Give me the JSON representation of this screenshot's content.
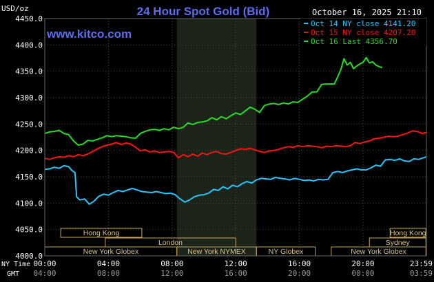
{
  "chart_data": {
    "type": "line",
    "title": "24 Hour Spot Gold (Bid)",
    "y_unit": "USD/oz",
    "brand": "www.kitco.com",
    "timestamp": "October 16, 2025 21:10",
    "ylim": [
      4000,
      4450
    ],
    "yticks": [
      4000,
      4050,
      4100,
      4150,
      4200,
      4250,
      4300,
      4350,
      4400,
      4450
    ],
    "ytick_labels": [
      "4000.0",
      "4050.0",
      "4100.0",
      "4150.0",
      "4200.0",
      "4250.0",
      "4300.0",
      "4350.0",
      "4400.0",
      "4450.0"
    ],
    "x_hours": [
      0,
      4,
      8,
      12,
      16,
      20,
      23.983
    ],
    "ny_time_label": "NY Time",
    "gmt_label": "GMT",
    "ny_time_ticks": [
      "00:00",
      "04:00",
      "08:00",
      "12:00",
      "16:00",
      "20:00",
      "23:59"
    ],
    "gmt_ticks": [
      "04:00",
      "08:00",
      "12:00",
      "16:00",
      "20:00",
      "00:00",
      "03:59"
    ],
    "shaded_region_hours": [
      8.3,
      13.3
    ],
    "sessions": [
      {
        "name": "Hong Kong",
        "row": 0,
        "start": 1.0,
        "end": 6.1
      },
      {
        "name": "Hong Kong",
        "row": 0,
        "start": 21.7,
        "end": 23.95
      },
      {
        "name": "London",
        "row": 1,
        "start": 3.8,
        "end": 12.0
      },
      {
        "name": "Sydney",
        "row": 1,
        "start": 20.4,
        "end": 23.95
      },
      {
        "name": "New York Globex",
        "row": 2,
        "start": 0.0,
        "end": 8.3
      },
      {
        "name": "New York NYMEX",
        "row": 2,
        "start": 8.3,
        "end": 13.3
      },
      {
        "name": "NY Globex",
        "row": 2,
        "start": 13.3,
        "end": 17.0
      },
      {
        "name": "New York Globex",
        "row": 2,
        "start": 18.0,
        "end": 23.95
      }
    ],
    "series": [
      {
        "name": "Oct 14 NY close 4141.20",
        "color": "#22c8ff",
        "x": [
          0.0,
          0.3,
          0.6,
          0.9,
          1.2,
          1.5,
          1.7,
          1.9,
          2.0,
          2.2,
          2.5,
          2.8,
          3.1,
          3.4,
          3.7,
          4.0,
          4.3,
          4.6,
          4.9,
          5.2,
          5.5,
          5.8,
          6.1,
          6.4,
          6.7,
          7.0,
          7.3,
          7.6,
          7.9,
          8.2,
          8.5,
          8.8,
          9.1,
          9.4,
          9.7,
          10.0,
          10.3,
          10.6,
          10.9,
          11.2,
          11.5,
          11.8,
          12.1,
          12.4,
          12.7,
          13.0,
          13.3,
          13.6,
          13.9,
          14.2,
          14.5,
          14.8,
          15.1,
          15.4,
          15.7,
          16.0,
          16.3,
          16.6,
          16.9,
          17.2,
          17.5,
          17.8,
          18.1,
          18.4,
          18.7,
          19.0,
          19.3,
          19.6,
          19.9,
          20.2,
          20.5,
          20.8,
          21.1,
          21.4,
          21.7,
          22.0,
          22.3,
          22.6,
          22.9,
          23.2,
          23.5,
          23.8,
          23.983
        ],
        "values": [
          4164,
          4165,
          4168,
          4166,
          4171,
          4169,
          4162,
          4158,
          4112,
          4106,
          4108,
          4098,
          4104,
          4113,
          4117,
          4115,
          4120,
          4124,
          4122,
          4125,
          4128,
          4125,
          4122,
          4121,
          4120,
          4122,
          4120,
          4118,
          4119,
          4116,
          4108,
          4102,
          4106,
          4112,
          4115,
          4116,
          4119,
          4126,
          4124,
          4131,
          4127,
          4134,
          4131,
          4137,
          4141,
          4138,
          4144,
          4147,
          4146,
          4145,
          4149,
          4147,
          4146,
          4144,
          4147,
          4145,
          4143,
          4144,
          4142,
          4145,
          4144,
          4145,
          4158,
          4160,
          4158,
          4161,
          4163,
          4165,
          4163,
          4163,
          4167,
          4172,
          4170,
          4182,
          4183,
          4181,
          4184,
          4180,
          4179,
          4184,
          4183,
          4186,
          4188
        ]
      },
      {
        "name": "Oct 15 NY close 4207.20",
        "color": "#ff1010",
        "x": [
          0.0,
          0.3,
          0.6,
          0.9,
          1.2,
          1.5,
          1.8,
          2.1,
          2.4,
          2.7,
          3.0,
          3.3,
          3.6,
          3.9,
          4.2,
          4.5,
          4.8,
          5.1,
          5.4,
          5.7,
          6.0,
          6.3,
          6.6,
          6.9,
          7.2,
          7.5,
          7.8,
          8.1,
          8.4,
          8.7,
          9.0,
          9.3,
          9.6,
          9.9,
          10.2,
          10.5,
          10.8,
          11.1,
          11.4,
          11.7,
          12.0,
          12.3,
          12.6,
          12.9,
          13.2,
          13.5,
          13.8,
          14.1,
          14.4,
          14.7,
          15.0,
          15.3,
          15.6,
          15.9,
          16.2,
          16.5,
          16.8,
          17.1,
          17.4,
          17.7,
          18.0,
          18.3,
          18.6,
          18.9,
          19.2,
          19.5,
          19.8,
          20.1,
          20.4,
          20.7,
          21.0,
          21.3,
          21.6,
          21.9,
          22.2,
          22.5,
          22.8,
          23.1,
          23.4,
          23.7,
          23.983
        ],
        "values": [
          4185,
          4183,
          4186,
          4188,
          4187,
          4190,
          4188,
          4192,
          4190,
          4193,
          4198,
          4203,
          4207,
          4210,
          4212,
          4215,
          4211,
          4214,
          4212,
          4206,
          4199,
          4201,
          4197,
          4199,
          4196,
          4197,
          4198,
          4196,
          4186,
          4192,
          4188,
          4193,
          4189,
          4195,
          4192,
          4196,
          4198,
          4194,
          4193,
          4196,
          4200,
          4203,
          4202,
          4204,
          4201,
          4198,
          4196,
          4199,
          4200,
          4202,
          4205,
          4207,
          4206,
          4209,
          4207,
          4209,
          4208,
          4207,
          4205,
          4208,
          4207,
          4209,
          4208,
          4207,
          4209,
          4215,
          4213,
          4216,
          4218,
          4222,
          4223,
          4225,
          4227,
          4226,
          4227,
          4230,
          4233,
          4237,
          4236,
          4232,
          4234
        ]
      },
      {
        "name": "Oct 16 Last 4356.70",
        "color": "#22e022",
        "x": [
          0.0,
          0.3,
          0.6,
          0.9,
          1.2,
          1.5,
          1.8,
          2.1,
          2.4,
          2.7,
          3.0,
          3.3,
          3.6,
          3.9,
          4.2,
          4.5,
          4.8,
          5.1,
          5.4,
          5.7,
          6.0,
          6.3,
          6.6,
          6.9,
          7.2,
          7.5,
          7.8,
          8.1,
          8.4,
          8.7,
          9.0,
          9.3,
          9.6,
          9.9,
          10.2,
          10.5,
          10.8,
          11.1,
          11.4,
          11.7,
          12.0,
          12.3,
          12.6,
          12.9,
          13.2,
          13.5,
          13.8,
          14.1,
          14.4,
          14.7,
          15.0,
          15.3,
          15.6,
          15.9,
          16.2,
          16.5,
          16.8,
          17.1,
          17.4,
          17.7,
          18.0,
          18.2,
          18.4,
          18.6,
          18.8,
          19.0,
          19.2,
          19.4,
          19.6,
          19.8,
          20.0,
          20.2,
          20.4,
          20.6,
          20.8,
          21.0,
          21.2
        ],
        "values": [
          4232,
          4235,
          4236,
          4238,
          4232,
          4230,
          4218,
          4210,
          4212,
          4219,
          4218,
          4221,
          4224,
          4228,
          4226,
          4228,
          4227,
          4226,
          4224,
          4223,
          4232,
          4236,
          4239,
          4240,
          4238,
          4241,
          4239,
          4244,
          4241,
          4244,
          4252,
          4249,
          4253,
          4254,
          4256,
          4262,
          4258,
          4264,
          4260,
          4266,
          4271,
          4268,
          4275,
          4282,
          4278,
          4272,
          4285,
          4288,
          4289,
          4287,
          4290,
          4288,
          4292,
          4291,
          4297,
          4303,
          4311,
          4311,
          4325,
          4326,
          4326,
          4326,
          4339,
          4353,
          4374,
          4362,
          4367,
          4355,
          4360,
          4364,
          4367,
          4376,
          4366,
          4368,
          4362,
          4359,
          4357
        ]
      }
    ]
  }
}
